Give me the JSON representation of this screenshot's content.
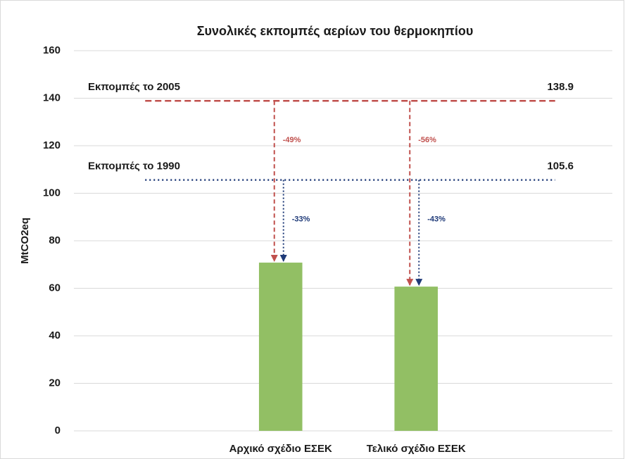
{
  "chart_data": {
    "type": "bar",
    "title": "Συνολικές εκπομπές αερίων του θερμοκηπίου",
    "ylabel": "MtCO2eq",
    "categories": [
      null,
      "Αρχικό σχέδιο ΕΣΕΚ",
      "Τελικό σχέδιο ΕΣΕΚ",
      null
    ],
    "values": [
      null,
      70.8,
      60.7,
      null
    ],
    "color": "#92bf64",
    "ylim": [
      0,
      160
    ],
    "yticks": [
      0,
      20,
      40,
      60,
      80,
      100,
      120,
      140,
      160
    ],
    "grid": true,
    "reference_lines": [
      {
        "label": "Εκπομπές το 2005",
        "value": 138.9,
        "color": "#c0504d",
        "style": "dashed",
        "changes": [
          null,
          {
            "value": -49,
            "label": "-49%"
          },
          {
            "value": -56,
            "label": "-56%"
          },
          null
        ]
      },
      {
        "label": "Εκπομπές το 1990",
        "value": 105.6,
        "color": "#1f3a78",
        "style": "dotted",
        "changes": [
          null,
          {
            "value": -33,
            "label": "-33%"
          },
          {
            "value": -43,
            "label": "-43%"
          },
          null
        ]
      }
    ]
  }
}
